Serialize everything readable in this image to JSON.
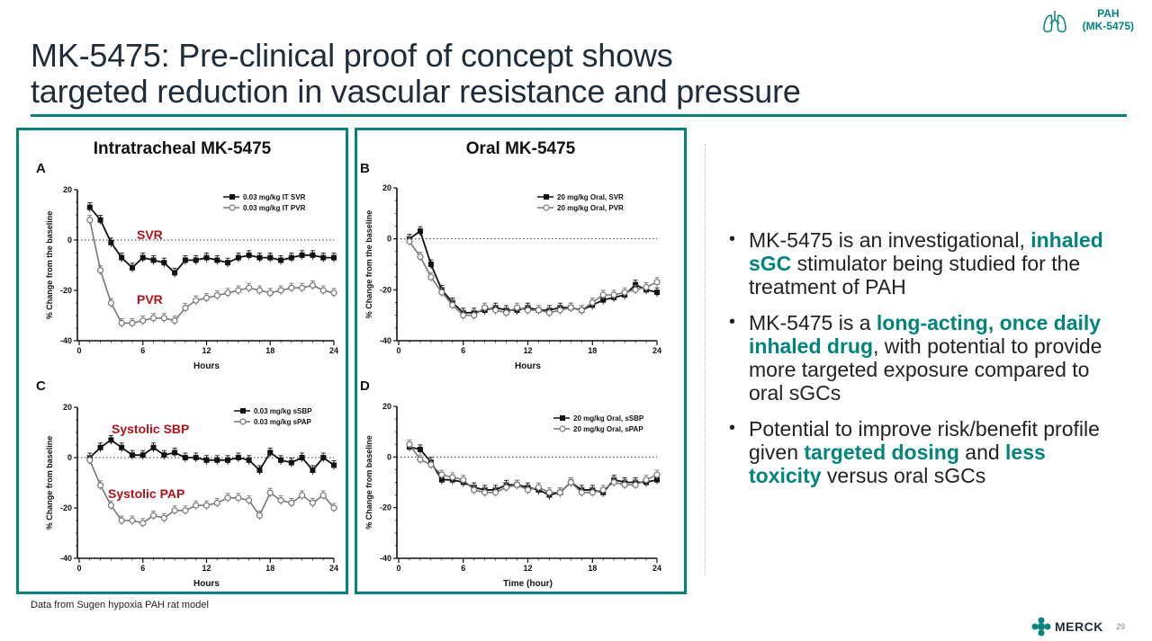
{
  "slide": {
    "title_line1": "MK-5475: Pre-clinical proof of concept shows",
    "title_line2": "targeted reduction in vascular resistance and pressure",
    "badge_line1": "PAH",
    "badge_line2": "(MK-5475)",
    "footnote": "Data from Sugen hypoxia PAH rat model",
    "page_number": "29",
    "logo_text": "MERCK",
    "accent_color": "#00857c",
    "annotation_color": "#b3121a"
  },
  "panels": {
    "left_title": "Intratracheal MK-5475",
    "right_title": "Oral MK-5475"
  },
  "bullets": [
    {
      "parts": [
        {
          "t": "MK-5475 is an investigational, "
        },
        {
          "t": "inhaled sGC",
          "hl": true
        },
        {
          "t": " stimulator being studied for the treatment of PAH"
        }
      ]
    },
    {
      "parts": [
        {
          "t": "MK-5475 is a "
        },
        {
          "t": "long-acting, once daily inhaled drug",
          "hl": true
        },
        {
          "t": ", with potential to provide more targeted exposure compared to oral sGCs"
        }
      ]
    },
    {
      "parts": [
        {
          "t": "Potential to improve risk/benefit profile given "
        },
        {
          "t": "targeted dosing",
          "hl": true
        },
        {
          "t": " and "
        },
        {
          "t": "less toxicity",
          "hl": true
        },
        {
          "t": " versus oral sGCs"
        }
      ]
    }
  ],
  "chart_data": [
    {
      "panel": "A",
      "type": "line",
      "xlabel": "Hours",
      "ylabel": "% Change from the baseline",
      "xlim": [
        0,
        24
      ],
      "ylim": [
        -40,
        20
      ],
      "xticks": [
        0,
        6,
        12,
        18,
        24
      ],
      "yticks": [
        -40,
        -20,
        0,
        20
      ],
      "annotations": [
        "SVR",
        "PVR"
      ],
      "series": [
        {
          "name": "0.03 mg/kg IT SVR",
          "marker": "filled-square",
          "x": [
            1,
            2,
            3,
            4,
            5,
            6,
            7,
            8,
            9,
            10,
            11,
            12,
            13,
            14,
            15,
            16,
            17,
            18,
            19,
            20,
            21,
            22,
            23,
            24
          ],
          "values": [
            13,
            8,
            -1,
            -7,
            -11,
            -7,
            -8,
            -9,
            -13,
            -8,
            -8,
            -7,
            -8,
            -9,
            -7,
            -6,
            -7,
            -7,
            -8,
            -7,
            -6,
            -6,
            -7,
            -7
          ]
        },
        {
          "name": "0.03 mg/kg IT PVR",
          "marker": "open-circle",
          "x": [
            1,
            2,
            3,
            4,
            5,
            6,
            7,
            8,
            9,
            10,
            11,
            12,
            13,
            14,
            15,
            16,
            17,
            18,
            19,
            20,
            21,
            22,
            23,
            24
          ],
          "values": [
            8,
            -12,
            -25,
            -33,
            -33,
            -32,
            -31,
            -31,
            -32,
            -27,
            -24,
            -23,
            -22,
            -21,
            -20,
            -19,
            -20,
            -21,
            -20,
            -19,
            -19,
            -18,
            -20,
            -21
          ]
        }
      ]
    },
    {
      "panel": "B",
      "type": "line",
      "xlabel": "Hours",
      "ylabel": "% Change from the baseline",
      "xlim": [
        0,
        24
      ],
      "ylim": [
        -40,
        20
      ],
      "xticks": [
        0,
        6,
        12,
        18,
        24
      ],
      "yticks": [
        -40,
        -20,
        0,
        20
      ],
      "annotations": [],
      "series": [
        {
          "name": "20 mg/kg Oral, SVR",
          "marker": "filled-square",
          "x": [
            1,
            2,
            3,
            4,
            5,
            6,
            7,
            8,
            9,
            10,
            11,
            12,
            13,
            14,
            15,
            16,
            17,
            18,
            19,
            20,
            21,
            22,
            23,
            24
          ],
          "values": [
            0,
            3,
            -10,
            -20,
            -25,
            -29,
            -29,
            -28,
            -27,
            -28,
            -28,
            -27,
            -28,
            -28,
            -27,
            -27,
            -28,
            -26,
            -24,
            -23,
            -22,
            -18,
            -20,
            -21
          ]
        },
        {
          "name": "20 mg/kg Oral, PVR",
          "marker": "open-circle",
          "x": [
            1,
            2,
            3,
            4,
            5,
            6,
            7,
            8,
            9,
            10,
            11,
            12,
            13,
            14,
            15,
            16,
            17,
            18,
            19,
            20,
            21,
            22,
            23,
            24
          ],
          "values": [
            -1,
            -7,
            -15,
            -21,
            -26,
            -30,
            -30,
            -27,
            -28,
            -29,
            -27,
            -28,
            -28,
            -29,
            -28,
            -27,
            -28,
            -25,
            -22,
            -22,
            -21,
            -20,
            -19,
            -17
          ]
        }
      ]
    },
    {
      "panel": "C",
      "type": "line",
      "xlabel": "Hours",
      "ylabel": "% Change from baseline",
      "xlim": [
        0,
        24
      ],
      "ylim": [
        -40,
        20
      ],
      "xticks": [
        0,
        6,
        12,
        18,
        24
      ],
      "yticks": [
        -40,
        -20,
        0,
        20
      ],
      "annotations": [
        "Systolic SBP",
        "Systolic PAP"
      ],
      "series": [
        {
          "name": "0.03 mg/kg sSBP",
          "marker": "filled-square",
          "x": [
            1,
            2,
            3,
            4,
            5,
            6,
            7,
            8,
            9,
            10,
            11,
            12,
            13,
            14,
            15,
            16,
            17,
            18,
            19,
            20,
            21,
            22,
            23,
            24
          ],
          "values": [
            0,
            4,
            7,
            4,
            1,
            1,
            4,
            1,
            2,
            0,
            0,
            -1,
            -1,
            -1,
            0,
            -1,
            -5,
            2,
            -1,
            -2,
            0,
            -5,
            0,
            -3
          ]
        },
        {
          "name": "0.03 mg/kg sPAP",
          "marker": "open-circle",
          "x": [
            1,
            2,
            3,
            4,
            5,
            6,
            7,
            8,
            9,
            10,
            11,
            12,
            13,
            14,
            15,
            16,
            17,
            18,
            19,
            20,
            21,
            22,
            23,
            24
          ],
          "values": [
            -1,
            -11,
            -19,
            -25,
            -25,
            -26,
            -23,
            -24,
            -21,
            -21,
            -19,
            -19,
            -18,
            -16,
            -16,
            -17,
            -23,
            -14,
            -17,
            -18,
            -15,
            -18,
            -15,
            -20
          ]
        }
      ]
    },
    {
      "panel": "D",
      "type": "line",
      "xlabel": "Time (hour)",
      "ylabel": "% Change from baseline",
      "xlim": [
        0,
        24
      ],
      "ylim": [
        -40,
        20
      ],
      "xticks": [
        0,
        6,
        12,
        18,
        24
      ],
      "yticks": [
        -40,
        -20,
        0,
        20
      ],
      "annotations": [],
      "series": [
        {
          "name": "20 mg/kg Oral, sSBP",
          "marker": "filled-square",
          "x": [
            1,
            2,
            3,
            4,
            5,
            6,
            7,
            8,
            9,
            10,
            11,
            12,
            13,
            14,
            15,
            16,
            17,
            18,
            19,
            20,
            21,
            22,
            23,
            24
          ],
          "values": [
            4,
            3,
            -2,
            -9,
            -9,
            -10,
            -12,
            -13,
            -13,
            -11,
            -11,
            -12,
            -13,
            -15,
            -14,
            -10,
            -13,
            -13,
            -14,
            -9,
            -10,
            -10,
            -10,
            -9
          ]
        },
        {
          "name": "20 mg/kg Oral, sPAP",
          "marker": "open-circle",
          "x": [
            1,
            2,
            3,
            4,
            5,
            6,
            7,
            8,
            9,
            10,
            11,
            12,
            13,
            14,
            15,
            16,
            17,
            18,
            19,
            20,
            21,
            22,
            23,
            24
          ],
          "values": [
            5,
            -1,
            -3,
            -7,
            -8,
            -9,
            -13,
            -14,
            -14,
            -12,
            -11,
            -13,
            -12,
            -14,
            -14,
            -10,
            -14,
            -14,
            -13,
            -10,
            -11,
            -11,
            -9,
            -7
          ]
        }
      ]
    }
  ]
}
